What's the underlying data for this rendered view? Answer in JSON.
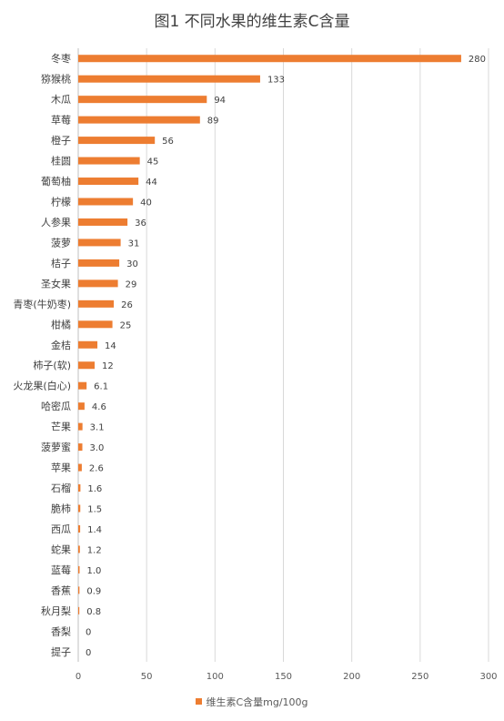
{
  "chart_data": {
    "type": "bar",
    "orientation": "horizontal",
    "title": "图1 不同水果的维生素C含量",
    "categories": [
      "冬枣",
      "猕猴桃",
      "木瓜",
      "草莓",
      "橙子",
      "桂圆",
      "葡萄柚",
      "柠檬",
      "人参果",
      "菠萝",
      "桔子",
      "圣女果",
      "青枣(牛奶枣)",
      "柑橘",
      "金桔",
      "柿子(软)",
      "火龙果(白心)",
      "哈密瓜",
      "芒果",
      "菠萝蜜",
      "苹果",
      "石榴",
      "脆柿",
      "西瓜",
      "蛇果",
      "蓝莓",
      "香蕉",
      "秋月梨",
      "香梨",
      "提子"
    ],
    "series": [
      {
        "name": "维生素C含量mg/100g",
        "values": [
          280,
          133,
          94,
          89,
          56,
          45,
          44,
          40,
          36,
          31,
          30,
          29,
          26,
          25,
          14,
          12,
          6.1,
          4.6,
          3.1,
          3.0,
          2.6,
          1.6,
          1.5,
          1.4,
          1.2,
          1.0,
          0.9,
          0.8,
          0,
          0
        ],
        "value_labels": [
          "280",
          "133",
          "94",
          "89",
          "56",
          "45",
          "44",
          "40",
          "36",
          "31",
          "30",
          "29",
          "26",
          "25",
          "14",
          "12",
          "6.1",
          "4.6",
          "3.1",
          "3.0",
          "2.6",
          "1.6",
          "1.5",
          "1.4",
          "1.2",
          "1.0",
          "0.9",
          "0.8",
          "0",
          "0"
        ],
        "color": "#ED7D31"
      }
    ],
    "xlim": [
      0,
      300
    ],
    "xticks": [
      "0",
      "50",
      "100",
      "150",
      "200",
      "250",
      "300"
    ],
    "grid": true,
    "legend_position": "bottom"
  }
}
